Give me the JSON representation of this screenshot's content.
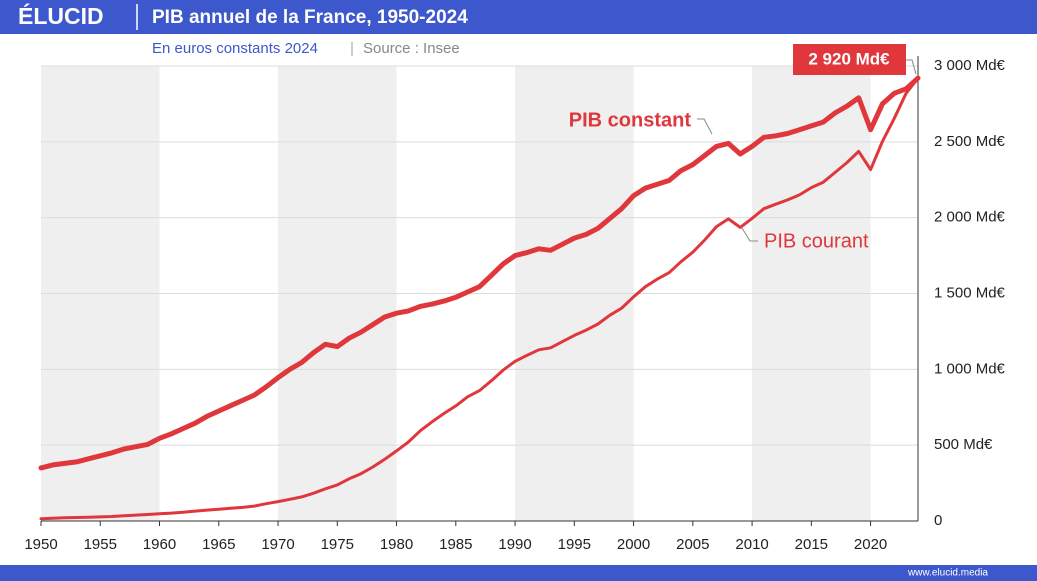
{
  "header": {
    "logo": "ÉLUCID"
  },
  "footer": {
    "url": "www.elucid.media"
  },
  "chart_data": {
    "type": "line",
    "title": "PIB annuel de la France, 1950-2024",
    "subtitle": "En euros constants 2024",
    "source": "Source : Insee",
    "x": [
      1950,
      1951,
      1952,
      1953,
      1954,
      1955,
      1956,
      1957,
      1958,
      1959,
      1960,
      1961,
      1962,
      1963,
      1964,
      1965,
      1966,
      1967,
      1968,
      1969,
      1970,
      1971,
      1972,
      1973,
      1974,
      1975,
      1976,
      1977,
      1978,
      1979,
      1980,
      1981,
      1982,
      1983,
      1984,
      1985,
      1986,
      1987,
      1988,
      1989,
      1990,
      1991,
      1992,
      1993,
      1994,
      1995,
      1996,
      1997,
      1998,
      1999,
      2000,
      2001,
      2002,
      2003,
      2004,
      2005,
      2006,
      2007,
      2008,
      2009,
      2010,
      2011,
      2012,
      2013,
      2014,
      2015,
      2016,
      2017,
      2018,
      2019,
      2020,
      2021,
      2022,
      2023,
      2024
    ],
    "series": [
      {
        "name": "PIB constant",
        "color": "#e0373c",
        "values": [
          350,
          370,
          380,
          390,
          410,
          430,
          450,
          475,
          490,
          505,
          545,
          575,
          610,
          645,
          690,
          725,
          760,
          795,
          830,
          885,
          945,
          1000,
          1045,
          1110,
          1165,
          1150,
          1205,
          1245,
          1295,
          1345,
          1370,
          1385,
          1415,
          1430,
          1450,
          1475,
          1510,
          1545,
          1620,
          1695,
          1750,
          1770,
          1795,
          1785,
          1825,
          1865,
          1890,
          1930,
          1995,
          2060,
          2145,
          2195,
          2220,
          2245,
          2310,
          2350,
          2410,
          2470,
          2490,
          2420,
          2470,
          2530,
          2540,
          2555,
          2580,
          2605,
          2630,
          2690,
          2735,
          2790,
          2580,
          2750,
          2820,
          2850,
          2920
        ]
      },
      {
        "name": "PIB courant",
        "color": "#e0373c",
        "values": [
          15,
          18,
          21,
          23,
          25,
          27,
          30,
          34,
          39,
          43,
          48,
          52,
          58,
          65,
          72,
          77,
          84,
          90,
          98,
          114,
          128,
          143,
          159,
          183,
          212,
          238,
          278,
          312,
          356,
          407,
          462,
          521,
          595,
          654,
          709,
          759,
          819,
          860,
          925,
          995,
          1053,
          1092,
          1129,
          1142,
          1183,
          1224,
          1259,
          1299,
          1357,
          1404,
          1478,
          1545,
          1595,
          1637,
          1710,
          1772,
          1853,
          1941,
          1992,
          1936,
          1995,
          2059,
          2089,
          2117,
          2150,
          2198,
          2234,
          2298,
          2363,
          2437,
          2317,
          2502,
          2655,
          2820,
          2920
        ]
      }
    ],
    "annotations": [
      "2 920 Md€"
    ],
    "xlim": [
      1950,
      2024
    ],
    "xticks": [
      1950,
      1955,
      1960,
      1965,
      1970,
      1975,
      1980,
      1985,
      1990,
      1995,
      2000,
      2005,
      2010,
      2015,
      2020
    ],
    "ylim": [
      0,
      3000
    ],
    "yticks": [
      0,
      {
        "value": 500,
        "label": "500 Md€"
      },
      {
        "value": 1000,
        "label": "1 000 Md€"
      },
      {
        "value": 1500,
        "label": "1 500 Md€"
      },
      {
        "value": 2000,
        "label": "2 000 Md€"
      },
      {
        "value": 2500,
        "label": "2 500 Md€"
      },
      {
        "value": 3000,
        "label": "3 000 Md€"
      }
    ],
    "grid": true
  }
}
